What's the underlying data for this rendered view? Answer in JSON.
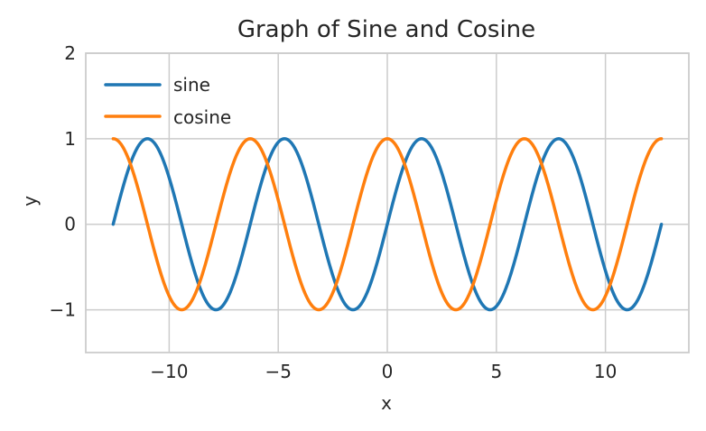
{
  "chart_data": {
    "type": "line",
    "title": "Graph of Sine and Cosine",
    "xlabel": "x",
    "ylabel": "y",
    "xlim": [
      -13.823,
      13.823
    ],
    "ylim": [
      -1.5,
      2
    ],
    "xticks": [
      -10,
      -5,
      0,
      5,
      10
    ],
    "xtick_labels": [
      "−10",
      "−5",
      "0",
      "5",
      "10"
    ],
    "yticks": [
      -1,
      0,
      1,
      2
    ],
    "ytick_labels": [
      "−1",
      "0",
      "1",
      "2"
    ],
    "grid": true,
    "legend_position": "top-left",
    "x_domain": [
      -12.566,
      12.566
    ],
    "series": [
      {
        "name": "sine",
        "function": "sin(x)",
        "color": "#1f77b4",
        "sample_points": [
          [
            -12.566,
            0
          ],
          [
            -10.996,
            1
          ],
          [
            -9.425,
            0
          ],
          [
            -7.854,
            -1
          ],
          [
            -6.283,
            0
          ],
          [
            -4.712,
            1
          ],
          [
            -3.142,
            0
          ],
          [
            -1.571,
            -1
          ],
          [
            0,
            0
          ],
          [
            1.571,
            1
          ],
          [
            3.142,
            0
          ],
          [
            4.712,
            -1
          ],
          [
            6.283,
            0
          ],
          [
            7.854,
            1
          ],
          [
            9.425,
            0
          ],
          [
            10.996,
            -1
          ],
          [
            12.566,
            0
          ]
        ]
      },
      {
        "name": "cosine",
        "function": "cos(x)",
        "color": "#ff7f0e",
        "sample_points": [
          [
            -12.566,
            1
          ],
          [
            -10.996,
            0
          ],
          [
            -9.425,
            -1
          ],
          [
            -7.854,
            0
          ],
          [
            -6.283,
            1
          ],
          [
            -4.712,
            0
          ],
          [
            -3.142,
            -1
          ],
          [
            -1.571,
            0
          ],
          [
            0,
            1
          ],
          [
            1.571,
            0
          ],
          [
            3.142,
            -1
          ],
          [
            4.712,
            0
          ],
          [
            6.283,
            1
          ],
          [
            7.854,
            0
          ],
          [
            9.425,
            -1
          ],
          [
            10.996,
            0
          ],
          [
            12.566,
            1
          ]
        ]
      }
    ],
    "axis_color": "#cccccc",
    "grid_color": "#cccccc"
  }
}
